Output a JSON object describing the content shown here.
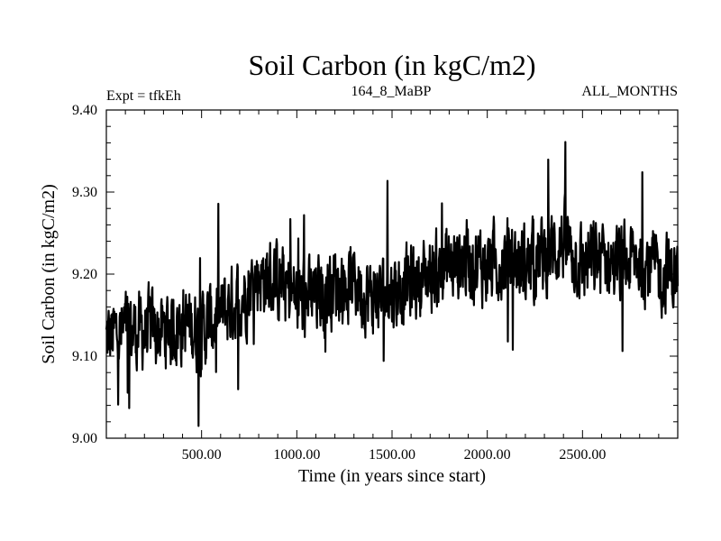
{
  "chart_data": {
    "type": "line",
    "title": "Soil Carbon (in kgC/m2)",
    "subtitle_left": "Expt = tfkEh",
    "subtitle_center": "164_8_MaBP",
    "subtitle_right": "ALL_MONTHS",
    "xlabel": "Time (in years since start)",
    "ylabel": "Soil Carbon (in kgC/m2)",
    "xlim": [
      0,
      3000
    ],
    "ylim": [
      9.0,
      9.4
    ],
    "xticks": [
      500,
      1000,
      1500,
      2000,
      2500
    ],
    "xtick_labels": [
      "500.00",
      "1000.00",
      "1500.00",
      "2000.00",
      "2500.00"
    ],
    "yticks": [
      9.0,
      9.1,
      9.2,
      9.3,
      9.4
    ],
    "ytick_labels": [
      "9.00",
      "9.10",
      "9.20",
      "9.30",
      "9.40"
    ],
    "series": [
      {
        "color": "#000000",
        "x": [
          0,
          100,
          200,
          300,
          400,
          500,
          600,
          700,
          800,
          900,
          1000,
          1100,
          1200,
          1300,
          1400,
          1500,
          1600,
          1700,
          1800,
          1900,
          2000,
          2100,
          2200,
          2300,
          2400,
          2500,
          2600,
          2700,
          2800,
          2900,
          3000
        ],
        "y": [
          9.12,
          9.13,
          9.13,
          9.13,
          9.14,
          9.13,
          9.15,
          9.17,
          9.2,
          9.19,
          9.17,
          9.17,
          9.19,
          9.19,
          9.17,
          9.18,
          9.19,
          9.2,
          9.21,
          9.22,
          9.21,
          9.22,
          9.21,
          9.22,
          9.24,
          9.21,
          9.22,
          9.21,
          9.22,
          9.2,
          9.2
        ],
        "noise_amplitude": 0.04
      }
    ]
  }
}
